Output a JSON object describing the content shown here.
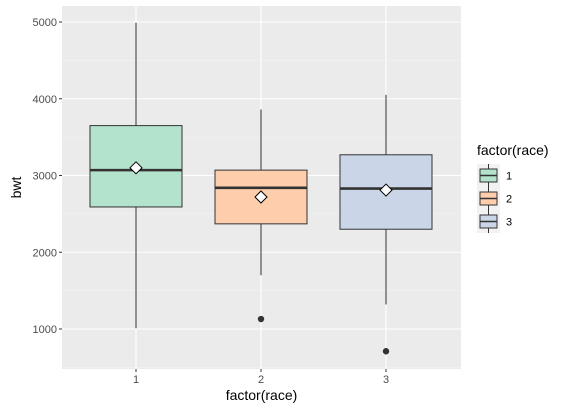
{
  "chart_data": {
    "type": "box",
    "title": "",
    "xlabel": "factor(race)",
    "ylabel": "bwt",
    "categories": [
      "1",
      "2",
      "3"
    ],
    "ylim": [
      600,
      5100
    ],
    "yticks": [
      1000,
      2000,
      3000,
      4000,
      5000
    ],
    "ytick_labels": [
      "1000",
      "2000",
      "3000",
      "4000",
      "5000"
    ],
    "grid": true,
    "legend": {
      "title": "factor(race)",
      "position": "right",
      "entries": [
        "1",
        "2",
        "3"
      ]
    },
    "colors": {
      "fills": [
        "#b3e2cd",
        "#fdcdac",
        "#cbd5e8"
      ],
      "panel_bg": "#ebebeb",
      "grid_major": "#ffffff",
      "outline": "#333333",
      "median": "#333333",
      "point": "#333333"
    },
    "boxes": [
      {
        "category": "1",
        "whisker_low": 1010,
        "q1": 2590,
        "median": 3070,
        "q3": 3650,
        "whisker_high": 4990,
        "mean": 3100,
        "outliers": []
      },
      {
        "category": "2",
        "whisker_low": 1700,
        "q1": 2370,
        "median": 2840,
        "q3": 3070,
        "whisker_high": 3860,
        "mean": 2720,
        "outliers": [
          1130
        ]
      },
      {
        "category": "3",
        "whisker_low": 1320,
        "q1": 2300,
        "median": 2830,
        "q3": 3270,
        "whisker_high": 4050,
        "mean": 2810,
        "outliers": [
          710
        ]
      }
    ]
  }
}
